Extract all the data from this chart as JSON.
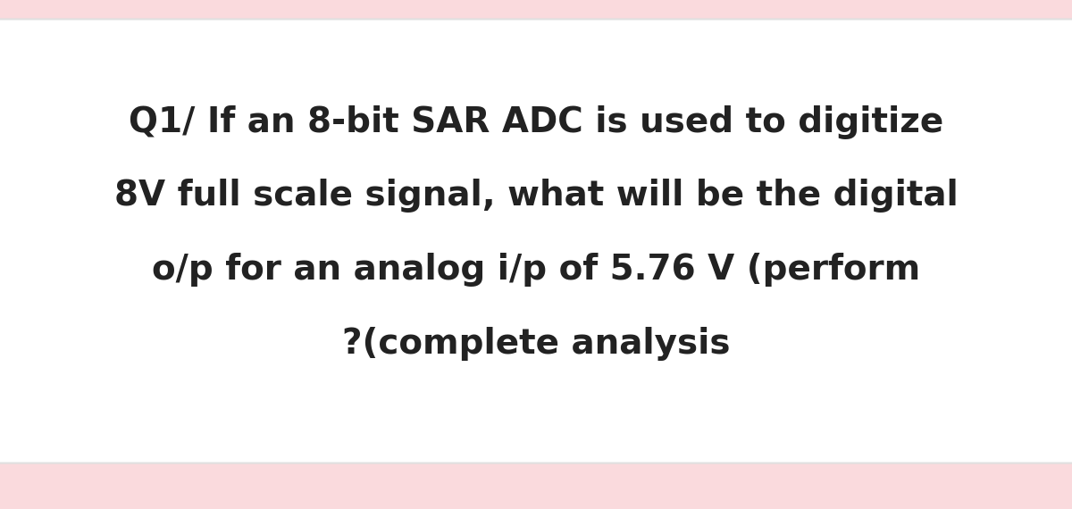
{
  "line1": "Q1/ If an 8-bit SAR ADC is used to digitize",
  "line2": "8V full scale signal, what will be the digital",
  "line3": "o/p for an analog i/p of 5.76 V (perform",
  "line4": "?(complete analysis",
  "bg_outer": "#fadadd",
  "bg_inner": "#ffffff",
  "text_color": "#222222",
  "font_size": 28,
  "fig_width": 12.0,
  "fig_height": 5.7
}
